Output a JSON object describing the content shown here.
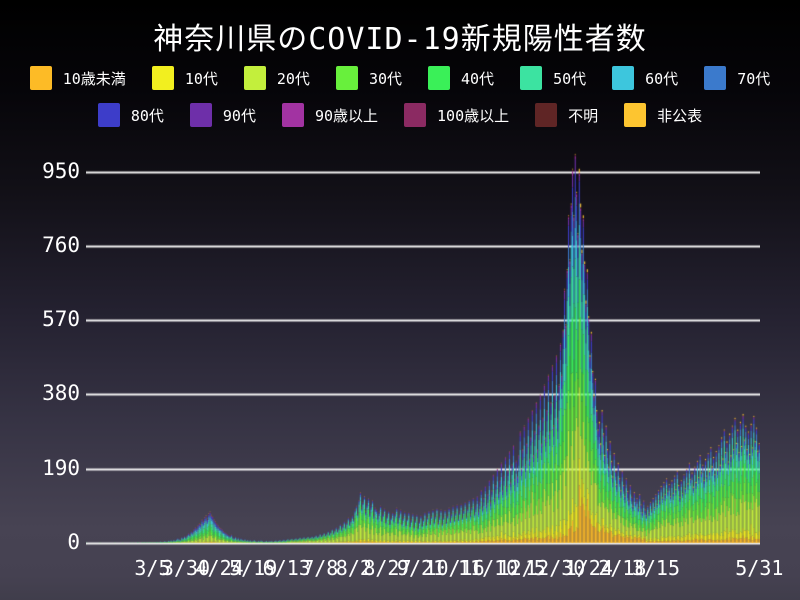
{
  "title": "神奈川県のCOVID-19新規陽性者数",
  "colors": {
    "background_top": "#000000",
    "background_bottom": "#4a4656",
    "grid": "#f2f2f2",
    "text": "#ffffff"
  },
  "legend": {
    "rows": [
      [
        {
          "label": "10歳未満",
          "color": "#fdbb26"
        },
        {
          "label": "10代",
          "color": "#f2ef1f"
        },
        {
          "label": "20代",
          "color": "#c3ef3c"
        },
        {
          "label": "30代",
          "color": "#68f03c"
        },
        {
          "label": "40代",
          "color": "#3af058"
        },
        {
          "label": "50代",
          "color": "#3ce3a1"
        },
        {
          "label": "60代",
          "color": "#3dc6dd"
        },
        {
          "label": "70代",
          "color": "#3b7acc"
        }
      ],
      [
        {
          "label": "80代",
          "color": "#3d3dc9"
        },
        {
          "label": "90代",
          "color": "#6e2fa9"
        },
        {
          "label": "90歳以上",
          "color": "#a233a2"
        },
        {
          "label": "100歳以上",
          "color": "#8b2a62"
        },
        {
          "label": "不明",
          "color": "#5f2525"
        },
        {
          "label": "非公表",
          "color": "#fdc530"
        }
      ]
    ]
  },
  "chart_data": {
    "type": "bar",
    "stacked": true,
    "title": "神奈川県のCOVID-19新規陽性者数",
    "xlabel": "",
    "ylabel": "",
    "ylim": [
      0,
      1010
    ],
    "yticks": [
      0,
      190,
      380,
      570,
      760,
      950
    ],
    "grid": "horizontal-white-lines",
    "legend_position": "top-two-rows",
    "x_start_date": "2020/1/16",
    "x_end_date": "2021/5/31",
    "days_total": 502,
    "xtick_days": [
      49,
      74,
      99,
      124,
      149,
      174,
      199,
      224,
      249,
      274,
      299,
      324,
      349,
      374,
      399,
      424,
      501
    ],
    "xtick_labels": [
      "3/5",
      "3/30",
      "4/24",
      "5/19",
      "6/13",
      "7/8",
      "8/2",
      "8/27",
      "9/21",
      "10/16",
      "11/10",
      "12/5",
      "12/30",
      "1/24",
      "2/18",
      "3/15",
      "5/31"
    ],
    "series_names": [
      "10歳未満",
      "10代",
      "20代",
      "30代",
      "40代",
      "50代",
      "60代",
      "70代",
      "80代",
      "90代",
      "90歳以上",
      "100歳以上",
      "不明",
      "非公表"
    ],
    "series_colors": [
      "#fdbb26",
      "#f2ef1f",
      "#c3ef3c",
      "#68f03c",
      "#3af058",
      "#3ce3a1",
      "#3dc6dd",
      "#3b7acc",
      "#3d3dc9",
      "#6e2fa9",
      "#a233a2",
      "#8b2a62",
      "#5f2525",
      "#fdc530"
    ],
    "share_profiles": [
      {
        "from_day": 0,
        "shares": [
          0.02,
          0.03,
          0.16,
          0.15,
          0.17,
          0.17,
          0.1,
          0.08,
          0.06,
          0.03,
          0.01,
          0.002,
          0.018,
          0.01
        ]
      },
      {
        "from_day": 150,
        "shares": [
          0.03,
          0.05,
          0.3,
          0.2,
          0.15,
          0.11,
          0.06,
          0.04,
          0.03,
          0.01,
          0.005,
          0.001,
          0.009,
          0.005
        ]
      },
      {
        "from_day": 290,
        "shares": [
          0.04,
          0.06,
          0.22,
          0.17,
          0.15,
          0.13,
          0.08,
          0.06,
          0.05,
          0.025,
          0.008,
          0.002,
          0.003,
          0.002
        ]
      },
      {
        "from_day": 367,
        "shares": [
          0.12,
          0.06,
          0.18,
          0.15,
          0.14,
          0.12,
          0.08,
          0.06,
          0.05,
          0.02,
          0.006,
          0.002,
          0.002,
          0.01
        ]
      },
      {
        "from_day": 417,
        "shares": [
          0.04,
          0.07,
          0.24,
          0.18,
          0.16,
          0.13,
          0.07,
          0.05,
          0.03,
          0.012,
          0.004,
          0.001,
          0.003,
          0.01
        ]
      }
    ],
    "daily_totals": [
      1,
      0,
      0,
      0,
      0,
      0,
      0,
      0,
      0,
      0,
      1,
      0,
      0,
      0,
      0,
      0,
      0,
      0,
      0,
      0,
      0,
      1,
      0,
      0,
      0,
      0,
      0,
      1,
      0,
      0,
      0,
      0,
      0,
      1,
      0,
      1,
      0,
      0,
      2,
      1,
      0,
      1,
      2,
      1,
      2,
      1,
      2,
      1,
      2,
      1,
      2,
      1,
      3,
      2,
      1,
      4,
      3,
      2,
      5,
      4,
      3,
      6,
      5,
      7,
      4,
      8,
      6,
      9,
      12,
      10,
      8,
      15,
      12,
      18,
      14,
      20,
      25,
      22,
      30,
      28,
      35,
      40,
      38,
      45,
      50,
      48,
      60,
      55,
      65,
      70,
      62,
      75,
      80,
      72,
      68,
      60,
      55,
      50,
      45,
      40,
      38,
      35,
      30,
      28,
      25,
      22,
      20,
      18,
      22,
      15,
      12,
      16,
      10,
      14,
      8,
      12,
      9,
      7,
      10,
      6,
      8,
      5,
      7,
      4,
      6,
      8,
      5,
      3,
      6,
      4,
      7,
      5,
      3,
      4,
      6,
      3,
      5,
      4,
      6,
      3,
      5,
      7,
      4,
      6,
      8,
      5,
      7,
      9,
      6,
      8,
      10,
      7,
      9,
      11,
      8,
      10,
      12,
      9,
      11,
      14,
      10,
      12,
      15,
      11,
      13,
      16,
      12,
      14,
      17,
      13,
      16,
      20,
      15,
      18,
      23,
      17,
      21,
      26,
      19,
      24,
      30,
      22,
      28,
      35,
      25,
      32,
      40,
      30,
      38,
      48,
      35,
      45,
      55,
      40,
      52,
      65,
      48,
      58,
      70,
      60,
      85,
      95,
      75,
      110,
      130,
      90,
      105,
      120,
      80,
      100,
      115,
      75,
      95,
      110,
      70,
      90,
      85,
      65,
      80,
      95,
      60,
      75,
      88,
      55,
      70,
      82,
      50,
      65,
      78,
      60,
      75,
      90,
      55,
      70,
      85,
      50,
      65,
      80,
      48,
      62,
      78,
      45,
      60,
      75,
      42,
      58,
      72,
      40,
      55,
      70,
      45,
      60,
      78,
      48,
      65,
      82,
      50,
      68,
      85,
      55,
      70,
      88,
      52,
      68,
      85,
      50,
      66,
      84,
      54,
      70,
      90,
      58,
      75,
      95,
      60,
      78,
      98,
      62,
      80,
      100,
      65,
      84,
      105,
      68,
      88,
      110,
      72,
      92,
      115,
      75,
      95,
      120,
      80,
      105,
      135,
      90,
      115,
      145,
      98,
      125,
      160,
      105,
      135,
      175,
      115,
      148,
      190,
      125,
      160,
      205,
      135,
      172,
      220,
      145,
      185,
      235,
      155,
      200,
      250,
      165,
      210,
      170,
      225,
      285,
      190,
      240,
      300,
      200,
      255,
      320,
      215,
      270,
      340,
      225,
      285,
      360,
      240,
      300,
      380,
      255,
      320,
      405,
      270,
      340,
      430,
      285,
      360,
      455,
      300,
      380,
      480,
      320,
      405,
      510,
      430,
      545,
      650,
      560,
      700,
      838,
      725,
      868,
      957,
      838,
      995,
      898,
      792,
      957,
      868,
      750,
      838,
      720,
      620,
      700,
      580,
      480,
      540,
      440,
      380,
      420,
      340,
      290,
      310,
      255,
      340,
      280,
      225,
      300,
      240,
      195,
      260,
      210,
      170,
      230,
      185,
      150,
      205,
      165,
      135,
      185,
      148,
      120,
      165,
      132,
      108,
      148,
      118,
      95,
      130,
      105,
      115,
      90,
      125,
      98,
      78,
      108,
      85,
      70,
      95,
      78,
      105,
      85,
      115,
      92,
      125,
      100,
      135,
      108,
      145,
      116,
      155,
      124,
      165,
      132,
      150,
      120,
      160,
      128,
      172,
      138,
      185,
      148,
      118,
      160,
      128,
      175,
      140,
      190,
      152,
      205,
      164,
      180,
      144,
      195,
      156,
      210,
      168,
      225,
      180,
      200,
      160,
      215,
      172,
      230,
      184,
      245,
      196,
      220,
      176,
      235,
      188,
      250,
      200,
      270,
      216,
      290,
      232,
      260,
      208,
      280,
      224,
      300,
      240,
      320,
      256,
      290,
      232,
      310,
      248,
      330,
      264,
      300,
      240,
      285,
      228,
      305,
      244,
      325,
      260,
      295,
      236,
      255
    ]
  }
}
